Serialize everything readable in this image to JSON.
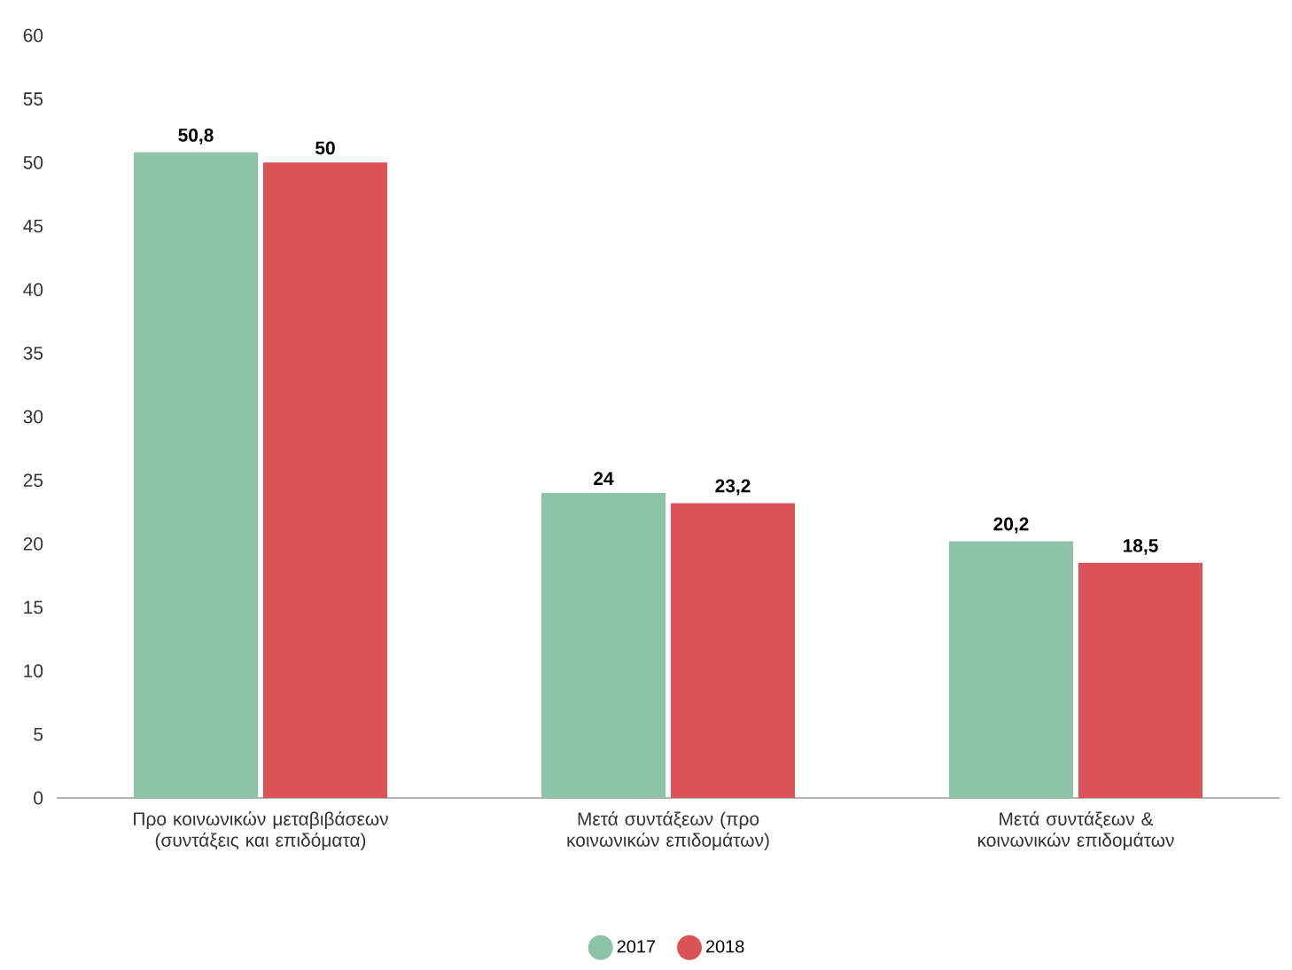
{
  "chart_data": {
    "type": "bar",
    "categories": [
      "Προ κοινωνικών μεταβιβάσεων (συντάξεις και επιδόματα)",
      "Μετά συντάξεων (προ κοινωνικών επιδομάτων)",
      "Μετά συντάξεων & κοινωνικών επιδομάτων"
    ],
    "series": [
      {
        "name": "2017",
        "color": "#8dc4a8",
        "values": [
          50.8,
          24,
          20.2
        ],
        "value_labels": [
          "50,8",
          "24",
          "20,2"
        ]
      },
      {
        "name": "2018",
        "color": "#d95357",
        "values": [
          50,
          23.2,
          18.5
        ],
        "value_labels": [
          "50",
          "23,2",
          "18,5"
        ]
      }
    ],
    "ylim": [
      0,
      60
    ],
    "yticks": [
      0,
      5,
      10,
      15,
      20,
      25,
      30,
      35,
      40,
      45,
      50,
      55,
      60
    ],
    "grid": false,
    "legend": "bottom"
  }
}
